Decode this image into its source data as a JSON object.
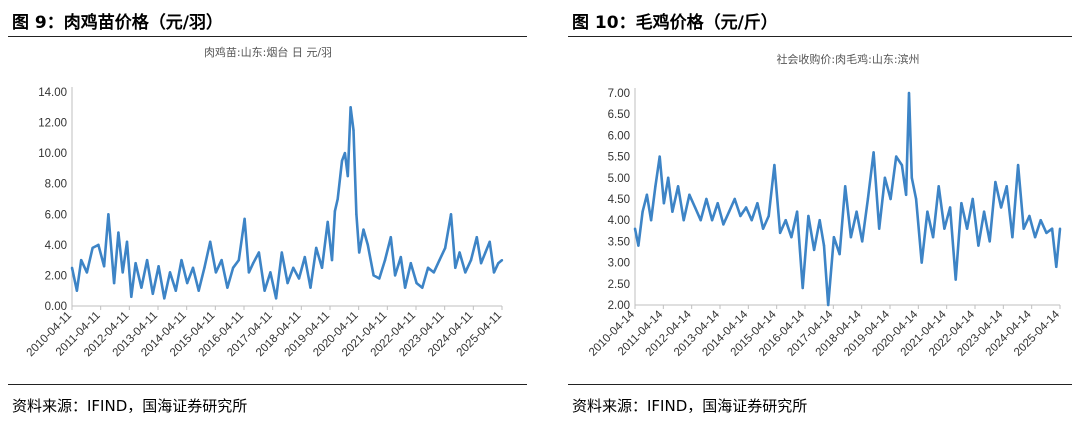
{
  "left": {
    "figure_title": "图 9：肉鸡苗价格（元/羽）",
    "source": "资料来源：IFIND，国海证券研究所"
  },
  "right": {
    "figure_title": "图 10：毛鸡价格（元/斤）",
    "source": "资料来源：IFIND，国海证券研究所"
  },
  "colors": {
    "line": "#3d84c6",
    "axis": "#bfbfbf"
  },
  "chart_data": [
    {
      "type": "line",
      "title": "肉鸡苗:山东:烟台 日 元/羽",
      "xlabel": "",
      "ylabel": "",
      "ylim": [
        0,
        14
      ],
      "grid": false,
      "legend": "none",
      "yticks": [
        "0.00",
        "2.00",
        "4.00",
        "6.00",
        "8.00",
        "10.00",
        "12.00",
        "14.00"
      ],
      "xticks": [
        "2010-04-11",
        "2011-04-11",
        "2012-04-11",
        "2013-04-11",
        "2014-04-11",
        "2015-04-11",
        "2016-04-11",
        "2017-04-11",
        "2018-04-11",
        "2019-04-11",
        "2020-04-11",
        "2021-04-11",
        "2022-04-11",
        "2023-04-11",
        "2024-04-11",
        "2025-04-11"
      ],
      "xrange": [
        2010.28,
        2025.28
      ],
      "series": [
        {
          "x": [
            2010.28,
            2010.45,
            2010.6,
            2010.8,
            2011.0,
            2011.2,
            2011.4,
            2011.55,
            2011.75,
            2011.9,
            2012.05,
            2012.2,
            2012.35,
            2012.5,
            2012.7,
            2012.9,
            2013.1,
            2013.3,
            2013.5,
            2013.7,
            2013.9,
            2014.1,
            2014.3,
            2014.5,
            2014.7,
            2014.9,
            2015.1,
            2015.3,
            2015.5,
            2015.7,
            2015.9,
            2016.1,
            2016.3,
            2016.45,
            2016.6,
            2016.8,
            2017.0,
            2017.2,
            2017.4,
            2017.6,
            2017.8,
            2018.0,
            2018.2,
            2018.4,
            2018.6,
            2018.8,
            2019.0,
            2019.2,
            2019.35,
            2019.45,
            2019.55,
            2019.7,
            2019.8,
            2019.9,
            2020.0,
            2020.1,
            2020.2,
            2020.3,
            2020.45,
            2020.6,
            2020.8,
            2021.0,
            2021.2,
            2021.4,
            2021.55,
            2021.75,
            2021.9,
            2022.1,
            2022.3,
            2022.5,
            2022.7,
            2022.9,
            2023.1,
            2023.3,
            2023.5,
            2023.65,
            2023.8,
            2024.0,
            2024.2,
            2024.4,
            2024.55,
            2024.7,
            2024.85,
            2025.0,
            2025.15,
            2025.28
          ],
          "y": [
            2.5,
            1.0,
            3.0,
            2.2,
            3.8,
            4.0,
            2.6,
            6.0,
            1.5,
            4.8,
            2.2,
            4.2,
            0.6,
            2.8,
            1.2,
            3.0,
            0.8,
            2.6,
            0.5,
            2.2,
            1.0,
            3.0,
            1.5,
            2.5,
            1.0,
            2.5,
            4.2,
            2.2,
            3.0,
            1.2,
            2.5,
            3.0,
            5.7,
            2.2,
            2.8,
            3.5,
            1.0,
            2.2,
            0.5,
            3.5,
            1.5,
            2.5,
            1.8,
            3.2,
            1.2,
            3.8,
            2.5,
            5.5,
            3.0,
            6.2,
            7.0,
            9.5,
            10.0,
            8.5,
            13.0,
            11.5,
            6.0,
            3.5,
            5.0,
            4.0,
            2.0,
            1.8,
            3.0,
            4.5,
            2.0,
            3.2,
            1.2,
            2.8,
            1.5,
            1.2,
            2.5,
            2.2,
            3.0,
            3.8,
            6.0,
            2.5,
            3.5,
            2.2,
            3.0,
            4.5,
            2.8,
            3.5,
            4.2,
            2.2,
            2.8,
            3.0
          ]
        }
      ]
    },
    {
      "type": "line",
      "title": "社会收购价:肉毛鸡:山东:滨州",
      "xlabel": "",
      "ylabel": "",
      "ylim": [
        2,
        7
      ],
      "grid": false,
      "legend": "none",
      "yticks": [
        "2.00",
        "2.50",
        "3.00",
        "3.50",
        "4.00",
        "4.50",
        "5.00",
        "5.50",
        "6.00",
        "6.50",
        "7.00"
      ],
      "xticks": [
        "2010-04-14",
        "2011-04-14",
        "2012-04-14",
        "2013-04-14",
        "2014-04-14",
        "2015-04-14",
        "2016-04-14",
        "2017-04-14",
        "2018-04-14",
        "2019-04-14",
        "2020-04-14",
        "2021-04-14",
        "2022-04-14",
        "2023-04-14",
        "2024-04-14",
        "2025-04-14"
      ],
      "xrange": [
        2010.28,
        2025.28
      ],
      "series": [
        {
          "x": [
            2010.28,
            2010.4,
            2010.55,
            2010.7,
            2010.85,
            2011.0,
            2011.15,
            2011.3,
            2011.45,
            2011.6,
            2011.8,
            2012.0,
            2012.2,
            2012.4,
            2012.6,
            2012.8,
            2013.0,
            2013.2,
            2013.4,
            2013.6,
            2013.8,
            2014.0,
            2014.2,
            2014.4,
            2014.6,
            2014.8,
            2015.0,
            2015.2,
            2015.4,
            2015.6,
            2015.8,
            2016.0,
            2016.2,
            2016.4,
            2016.6,
            2016.8,
            2016.95,
            2017.1,
            2017.3,
            2017.5,
            2017.7,
            2017.9,
            2018.1,
            2018.3,
            2018.5,
            2018.7,
            2018.9,
            2019.1,
            2019.3,
            2019.5,
            2019.7,
            2019.85,
            2019.95,
            2020.05,
            2020.2,
            2020.4,
            2020.6,
            2020.8,
            2021.0,
            2021.2,
            2021.4,
            2021.6,
            2021.8,
            2022.0,
            2022.2,
            2022.4,
            2022.6,
            2022.8,
            2023.0,
            2023.2,
            2023.4,
            2023.6,
            2023.8,
            2024.0,
            2024.2,
            2024.4,
            2024.6,
            2024.8,
            2025.0,
            2025.15,
            2025.28
          ],
          "y": [
            3.8,
            3.4,
            4.2,
            4.6,
            4.0,
            4.8,
            5.5,
            4.4,
            5.0,
            4.2,
            4.8,
            4.0,
            4.6,
            4.3,
            4.0,
            4.5,
            4.0,
            4.4,
            3.9,
            4.2,
            4.5,
            4.1,
            4.3,
            4.0,
            4.4,
            3.8,
            4.1,
            5.3,
            3.7,
            4.0,
            3.6,
            4.2,
            2.4,
            4.1,
            3.3,
            4.0,
            3.4,
            2.0,
            3.6,
            3.2,
            4.8,
            3.6,
            4.2,
            3.5,
            4.5,
            5.6,
            3.8,
            5.0,
            4.5,
            5.5,
            5.3,
            4.6,
            7.0,
            5.0,
            4.5,
            3.0,
            4.2,
            3.6,
            4.8,
            3.8,
            4.3,
            2.6,
            4.4,
            3.8,
            4.5,
            3.4,
            4.2,
            3.5,
            4.9,
            4.3,
            4.8,
            3.6,
            5.3,
            3.8,
            4.1,
            3.6,
            4.0,
            3.7,
            3.8,
            2.9,
            3.8
          ]
        }
      ]
    }
  ]
}
